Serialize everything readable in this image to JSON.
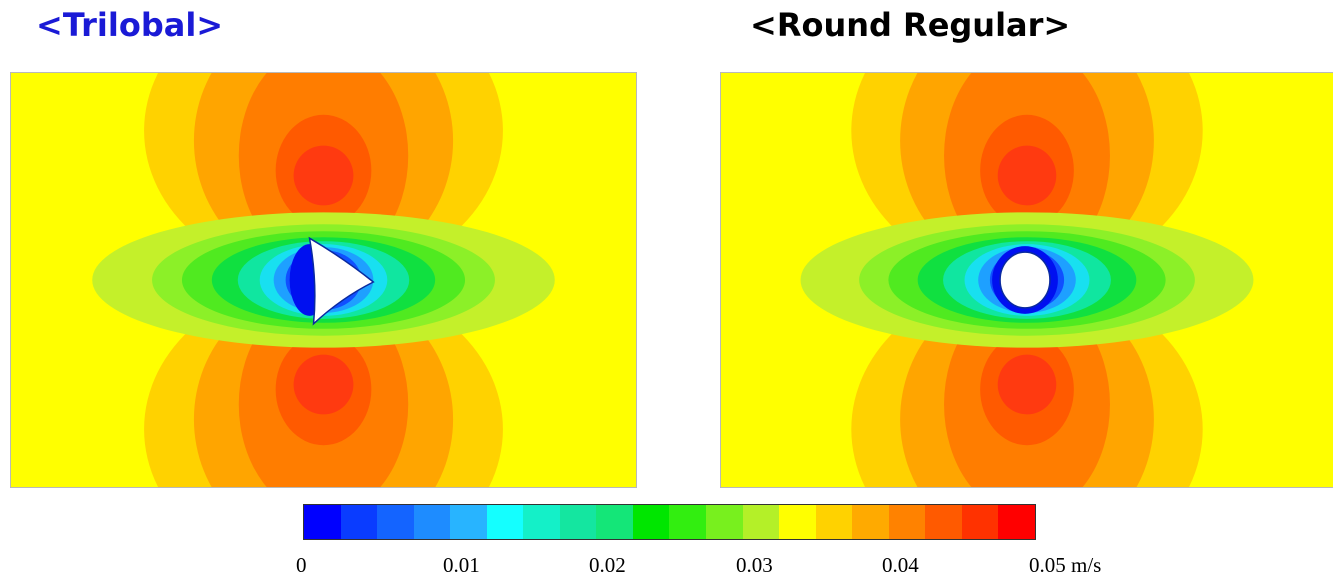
{
  "titles": {
    "left": "<Trilobal>",
    "right": "<Round Regular>",
    "left_color": "#1a1ad6",
    "right_color": "#000000"
  },
  "panels": {
    "left": {
      "obstacle": "trilobal"
    },
    "right": {
      "obstacle": "round"
    }
  },
  "colorbar": {
    "colors": [
      "#0000ff",
      "#0a3cff",
      "#1464ff",
      "#1e8cff",
      "#28b4ff",
      "#14ffff",
      "#14f0c8",
      "#14e6a0",
      "#14e678",
      "#00e600",
      "#32ee10",
      "#78f01e",
      "#b4f028",
      "#ffff00",
      "#ffd200",
      "#ffaa00",
      "#ff8200",
      "#ff5a00",
      "#ff3200",
      "#ff0000"
    ],
    "tick_labels": [
      "0",
      "0.01",
      "0.02",
      "0.03",
      "0.04",
      "0.05 m/s"
    ],
    "tick_positions": [
      0,
      0.01,
      0.02,
      0.03,
      0.04,
      0.05
    ]
  },
  "field_palette": {
    "background": "#ffff00",
    "orange1": "#ffd200",
    "orange2": "#ffa500",
    "orange3": "#ff7d00",
    "red1": "#ff5a00",
    "red2": "#ff3a10",
    "lime": "#c4f02a",
    "green1": "#8cf028",
    "green2": "#50ea20",
    "green3": "#10e040",
    "teal": "#10e6a0",
    "cyan": "#18e0f0",
    "lightblue": "#1ea0ff",
    "blue": "#1050ff",
    "deepblue": "#0010f0",
    "obstacle": "#ffffff"
  }
}
